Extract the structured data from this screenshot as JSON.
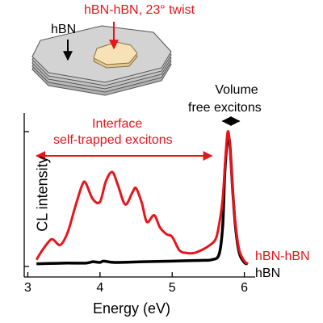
{
  "inset": {
    "twist_label": "hBN-hBN, 23° twist",
    "hbn_label": "hBN"
  },
  "annotations": {
    "volume_line1": "Volume",
    "volume_line2": "free excitons",
    "interface_line1": "Interface",
    "interface_line2": "self-trapped  excitons"
  },
  "colors": {
    "red": "#e8141c",
    "black": "#000000",
    "flake_fill": "#f5deb3",
    "substrate_fill": "#c8c8c8"
  },
  "chart_data": {
    "type": "line",
    "xlabel": "Energy (eV)",
    "ylabel": "CL intensity",
    "xlim": [
      2.95,
      6.15
    ],
    "ylim": [
      0,
      1.0
    ],
    "xticks": [
      "3",
      "4",
      "5",
      "6"
    ],
    "xtick_values": [
      3,
      4,
      5,
      6
    ],
    "y_tick_labels_shown": false,
    "series": [
      {
        "name": "hBN-hBN",
        "color": "#e8141c",
        "x": [
          3.12,
          3.2,
          3.3,
          3.35,
          3.45,
          3.55,
          3.65,
          3.75,
          3.8,
          3.9,
          4.0,
          4.08,
          4.17,
          4.25,
          4.35,
          4.45,
          4.5,
          4.58,
          4.65,
          4.75,
          4.83,
          4.92,
          5.0,
          5.1,
          5.2,
          5.3,
          5.4,
          5.5,
          5.6,
          5.65,
          5.7,
          5.74,
          5.77,
          5.8,
          5.84,
          5.88,
          5.93,
          6.0,
          6.05
        ],
        "y": [
          0.05,
          0.12,
          0.19,
          0.2,
          0.16,
          0.25,
          0.43,
          0.6,
          0.62,
          0.5,
          0.48,
          0.63,
          0.7,
          0.6,
          0.46,
          0.55,
          0.58,
          0.47,
          0.33,
          0.38,
          0.29,
          0.24,
          0.22,
          0.12,
          0.1,
          0.1,
          0.12,
          0.15,
          0.2,
          0.31,
          0.5,
          0.82,
          1.0,
          0.9,
          0.55,
          0.3,
          0.12,
          0.04,
          0.02
        ]
      },
      {
        "name": "hBN",
        "color": "#000000",
        "x": [
          3.12,
          3.5,
          3.8,
          3.9,
          4.0,
          4.05,
          4.2,
          4.6,
          5.0,
          5.4,
          5.55,
          5.65,
          5.7,
          5.73,
          5.77,
          5.8,
          5.84,
          5.88,
          5.93,
          6.0,
          6.05
        ],
        "y": [
          0.02,
          0.025,
          0.025,
          0.035,
          0.03,
          0.04,
          0.03,
          0.035,
          0.04,
          0.045,
          0.05,
          0.09,
          0.3,
          0.7,
          0.95,
          0.9,
          0.55,
          0.28,
          0.1,
          0.03,
          0.02
        ]
      }
    ],
    "legend": {
      "entries": [
        "hBN-hBN",
        "hBN"
      ],
      "placement": "bottom-right"
    },
    "annotation_arrows": [
      {
        "label": "Interface self-trapped excitons",
        "x_start": 3.12,
        "x_end": 5.55,
        "color": "#e8141c"
      },
      {
        "label": "Volume free excitons",
        "x_start": 5.7,
        "x_end": 5.93,
        "color": "#000000"
      }
    ]
  }
}
